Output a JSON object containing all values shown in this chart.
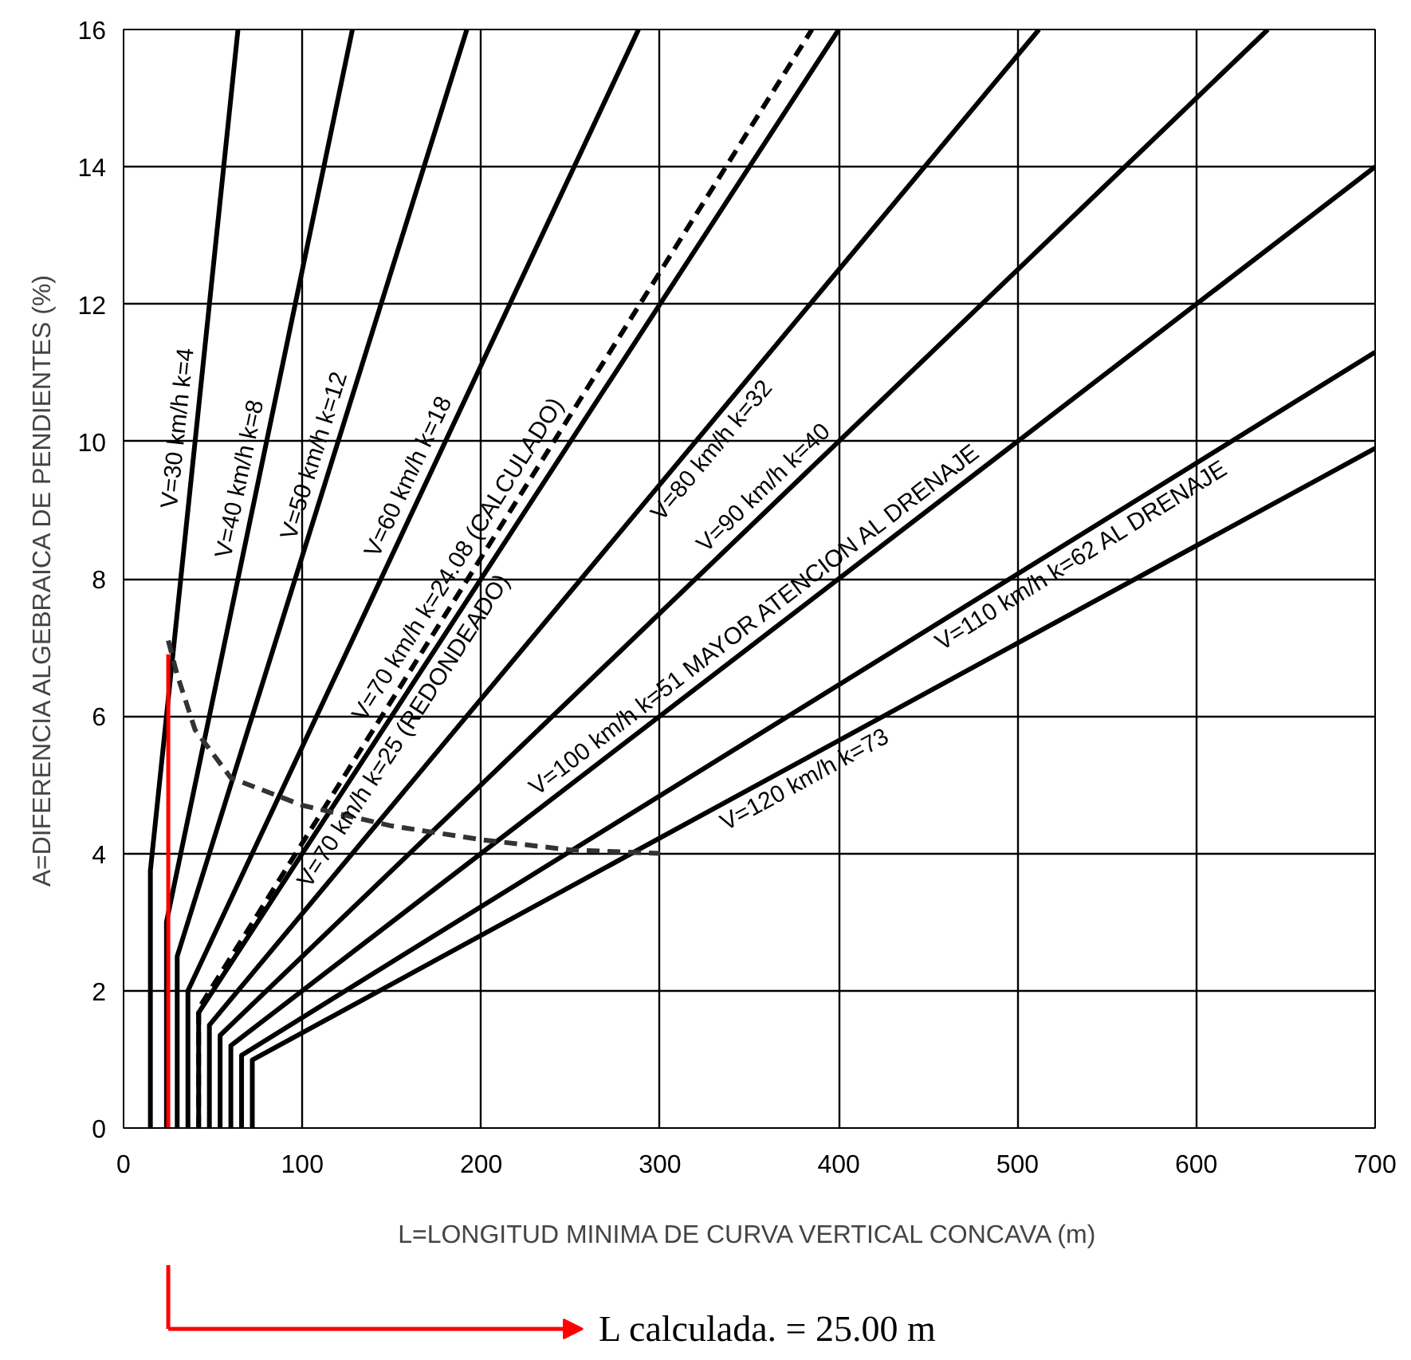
{
  "chart_data": {
    "type": "line",
    "xlabel": "L=LONGITUD MINIMA DE CURVA VERTICAL CONCAVA (m)",
    "ylabel": "A=DIFERENCIA ALGEBRAICA DE PENDIENTES (%)",
    "xlim": [
      0,
      700
    ],
    "ylim": [
      0,
      16
    ],
    "xticks": [
      0,
      100,
      200,
      300,
      400,
      500,
      600,
      700
    ],
    "yticks": [
      0,
      2,
      4,
      6,
      8,
      10,
      12,
      14,
      16
    ],
    "grid": true,
    "legend": false,
    "marker": "none",
    "series": [
      {
        "name": "V=30 km/h k=4",
        "color": "#000000",
        "x": [
          15,
          15,
          64
        ],
        "values": [
          0,
          3.75,
          16
        ]
      },
      {
        "name": "V=40 km/h k=8",
        "color": "#000000",
        "x": [
          24,
          24,
          128
        ],
        "values": [
          0,
          3,
          16
        ]
      },
      {
        "name": "V=50 km/h k=12",
        "color": "#000000",
        "x": [
          30,
          30,
          192
        ],
        "values": [
          0,
          2.5,
          16
        ]
      },
      {
        "name": "V=60 km/h k=18",
        "color": "#000000",
        "x": [
          36,
          36,
          288
        ],
        "values": [
          0,
          2,
          16
        ]
      },
      {
        "name": "V=70 km/h k=24.08 (CALCULADO)",
        "color": "#000000",
        "line_style": "dashed",
        "x": [
          42,
          42,
          385
        ],
        "values": [
          0,
          1.74,
          16
        ]
      },
      {
        "name": "V=70 km/h k=25 (REDONDEADO)",
        "color": "#000000",
        "x": [
          42,
          42,
          400
        ],
        "values": [
          0,
          1.68,
          16
        ]
      },
      {
        "name": "V=80 km/h k=32",
        "color": "#000000",
        "x": [
          48,
          48,
          512
        ],
        "values": [
          0,
          1.5,
          16
        ]
      },
      {
        "name": "V=90 km/h k=40",
        "color": "#000000",
        "x": [
          54,
          54,
          640
        ],
        "values": [
          0,
          1.35,
          16
        ]
      },
      {
        "name": "V=100 km/h k=51 MAYOR ATENCION AL DRENAJE",
        "color": "#000000",
        "x": [
          60,
          60,
          700
        ],
        "values": [
          0,
          1.2,
          14
        ]
      },
      {
        "name": "V=110 km/h k=62 AL DRENAJE",
        "color": "#000000",
        "x": [
          66,
          66,
          700
        ],
        "values": [
          0,
          1.06,
          11.3
        ]
      },
      {
        "name": "V=120 km/h k=73",
        "color": "#000000",
        "x": [
          72,
          72,
          700
        ],
        "values": [
          0,
          0.99,
          9.9
        ]
      },
      {
        "color": "#333333",
        "line_style": "dashed",
        "x": [
          25,
          30,
          40,
          60,
          100,
          150,
          200,
          250,
          300
        ],
        "values": [
          7.1,
          6.6,
          5.8,
          5.1,
          4.7,
          4.4,
          4.2,
          4.05,
          4.0
        ]
      },
      {
        "color": "#ff0000",
        "x": [
          25,
          25
        ],
        "values": [
          0,
          6.9
        ]
      }
    ],
    "annotations": [
      "L calculada. = 25.00 m"
    ]
  }
}
